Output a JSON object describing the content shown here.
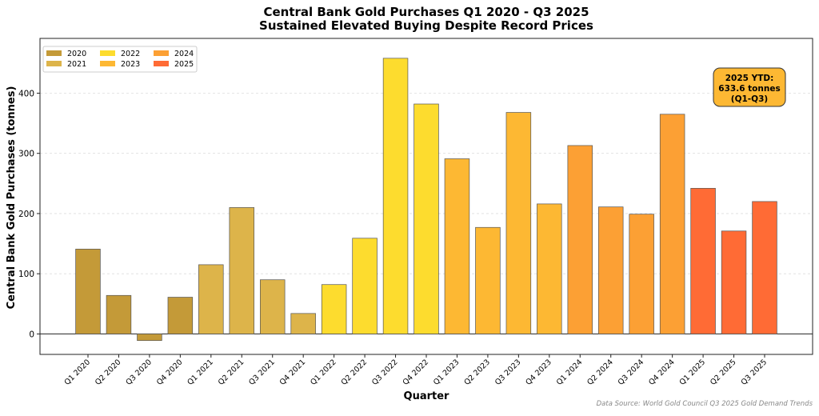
{
  "chart_data": {
    "type": "bar",
    "title": "Central Bank Gold Purchases Q1 2020 - Q3 2025",
    "subtitle": "Sustained Elevated Buying Despite Record Prices",
    "xlabel": "Quarter",
    "ylabel": "Central Bank Gold Purchases (tonnes)",
    "ylim": [
      -34,
      491
    ],
    "yticks": [
      0,
      100,
      200,
      300,
      400
    ],
    "grid": "horizontal dashed",
    "legend_placement": "top-left",
    "categories": [
      "Q1 2020",
      "Q2 2020",
      "Q3 2020",
      "Q4 2020",
      "Q1 2021",
      "Q2 2021",
      "Q3 2021",
      "Q4 2021",
      "Q1 2022",
      "Q2 2022",
      "Q3 2022",
      "Q4 2022",
      "Q1 2023",
      "Q2 2023",
      "Q3 2023",
      "Q4 2023",
      "Q1 2024",
      "Q2 2024",
      "Q3 2024",
      "Q4 2024",
      "Q1 2025",
      "Q2 2025",
      "Q3 2025"
    ],
    "values": [
      141,
      64,
      -11,
      61,
      115,
      210,
      90,
      34,
      82,
      159,
      458,
      382,
      291,
      177,
      368,
      216,
      313,
      211,
      199,
      365,
      242,
      171,
      220
    ],
    "legend": [
      {
        "label": "2020",
        "color": "#C49A38"
      },
      {
        "label": "2021",
        "color": "#DDB44A"
      },
      {
        "label": "2022",
        "color": "#FDDC2E"
      },
      {
        "label": "2023",
        "color": "#FDB833"
      },
      {
        "label": "2024",
        "color": "#FCA034"
      },
      {
        "label": "2025",
        "color": "#FF6B35"
      }
    ],
    "annotation": [
      "2025 YTD:",
      "633.6 tonnes",
      "(Q1-Q3)"
    ],
    "annotation_color": "#FDB833",
    "source": "Data Source: World Gold Council Q3 2025 Gold Demand Trends"
  }
}
